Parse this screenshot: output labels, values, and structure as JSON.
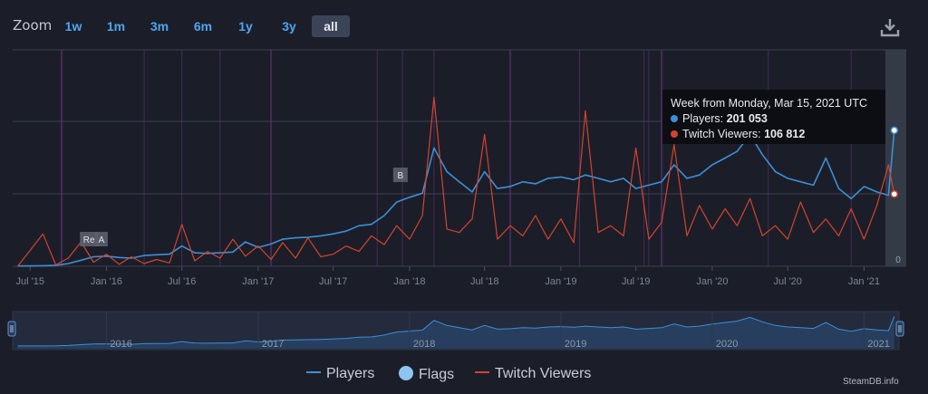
{
  "zoom": {
    "label": "Zoom",
    "buttons": [
      "1w",
      "1m",
      "3m",
      "6m",
      "1y",
      "3y",
      "all"
    ],
    "active": "all"
  },
  "tooltip": {
    "header": "Week from Monday, Mar 15, 2021 UTC",
    "players_label": "Players:",
    "players_value": "201 053",
    "twitch_label": "Twitch Viewers:",
    "twitch_value": "106 812"
  },
  "legend": {
    "players": "Players",
    "flags": "Flags",
    "twitch": "Twitch Viewers"
  },
  "credit": "SteamDB.info",
  "colors": {
    "players": "#3d8fd6",
    "twitch": "#d2442d",
    "flags": "#8ec4f2",
    "background": "#1b1e29",
    "grid": "#3a4050",
    "event_band": "#5a2f6a"
  },
  "chart_data": {
    "type": "line",
    "x_ticks": [
      "Jul '15",
      "Jan '16",
      "Jul '16",
      "Jan '17",
      "Jul '17",
      "Jan '18",
      "Jul '18",
      "Jan '19",
      "Jul '19",
      "Jan '20",
      "Jul '20",
      "Jan '21"
    ],
    "y_ticks_right": [
      "0"
    ],
    "flags": [
      "Re",
      "A",
      "B"
    ],
    "navigator_labels": [
      "2016",
      "2017",
      "2018",
      "2019",
      "2020",
      "2021"
    ],
    "ylim": [
      0,
      300000
    ],
    "series": [
      {
        "name": "Players",
        "points": [
          [
            "2015-06-01",
            400
          ],
          [
            "2015-07-01",
            500
          ],
          [
            "2015-08-01",
            800
          ],
          [
            "2015-09-01",
            1500
          ],
          [
            "2015-10-01",
            4000
          ],
          [
            "2015-11-01",
            9000
          ],
          [
            "2015-12-01",
            14000
          ],
          [
            "2016-01-01",
            15000
          ],
          [
            "2016-02-01",
            13000
          ],
          [
            "2016-03-01",
            12000
          ],
          [
            "2016-04-01",
            16000
          ],
          [
            "2016-05-01",
            17000
          ],
          [
            "2016-06-01",
            18000
          ],
          [
            "2016-07-01",
            30000
          ],
          [
            "2016-08-01",
            20000
          ],
          [
            "2016-09-01",
            19000
          ],
          [
            "2016-10-01",
            20000
          ],
          [
            "2016-11-01",
            21000
          ],
          [
            "2016-12-01",
            36000
          ],
          [
            "2017-01-01",
            28000
          ],
          [
            "2017-02-01",
            33000
          ],
          [
            "2017-03-01",
            40000
          ],
          [
            "2017-04-01",
            42000
          ],
          [
            "2017-05-01",
            43000
          ],
          [
            "2017-06-01",
            45000
          ],
          [
            "2017-07-01",
            48000
          ],
          [
            "2017-08-01",
            52000
          ],
          [
            "2017-09-01",
            60000
          ],
          [
            "2017-10-01",
            62000
          ],
          [
            "2017-11-01",
            75000
          ],
          [
            "2017-12-01",
            95000
          ],
          [
            "2018-01-01",
            102000
          ],
          [
            "2018-02-01",
            108000
          ],
          [
            "2018-03-01",
            175000
          ],
          [
            "2018-04-01",
            140000
          ],
          [
            "2018-05-01",
            125000
          ],
          [
            "2018-06-01",
            110000
          ],
          [
            "2018-07-01",
            140000
          ],
          [
            "2018-08-01",
            115000
          ],
          [
            "2018-09-01",
            118000
          ],
          [
            "2018-10-01",
            125000
          ],
          [
            "2018-11-01",
            122000
          ],
          [
            "2018-12-01",
            130000
          ],
          [
            "2019-01-01",
            132000
          ],
          [
            "2019-02-01",
            128000
          ],
          [
            "2019-03-01",
            135000
          ],
          [
            "2019-04-01",
            130000
          ],
          [
            "2019-05-01",
            125000
          ],
          [
            "2019-06-01",
            130000
          ],
          [
            "2019-07-01",
            115000
          ],
          [
            "2019-08-01",
            120000
          ],
          [
            "2019-09-01",
            125000
          ],
          [
            "2019-10-01",
            150000
          ],
          [
            "2019-11-01",
            130000
          ],
          [
            "2019-12-01",
            135000
          ],
          [
            "2020-01-01",
            150000
          ],
          [
            "2020-02-01",
            160000
          ],
          [
            "2020-03-01",
            170000
          ],
          [
            "2020-04-01",
            195000
          ],
          [
            "2020-05-01",
            165000
          ],
          [
            "2020-06-01",
            140000
          ],
          [
            "2020-07-01",
            130000
          ],
          [
            "2020-08-01",
            125000
          ],
          [
            "2020-09-01",
            120000
          ],
          [
            "2020-10-01",
            160000
          ],
          [
            "2020-11-01",
            115000
          ],
          [
            "2020-12-01",
            100000
          ],
          [
            "2021-01-01",
            118000
          ],
          [
            "2021-02-01",
            110000
          ],
          [
            "2021-03-01",
            105000
          ],
          [
            "2021-03-15",
            201053
          ]
        ]
      },
      {
        "name": "Twitch Viewers",
        "points": [
          [
            "2015-06-01",
            0
          ],
          [
            "2015-08-01",
            48000
          ],
          [
            "2015-09-01",
            2000
          ],
          [
            "2015-10-01",
            12000
          ],
          [
            "2015-11-01",
            36000
          ],
          [
            "2015-12-01",
            6000
          ],
          [
            "2016-01-01",
            18000
          ],
          [
            "2016-02-01",
            3000
          ],
          [
            "2016-03-01",
            14000
          ],
          [
            "2016-04-01",
            4000
          ],
          [
            "2016-05-01",
            10000
          ],
          [
            "2016-06-01",
            5000
          ],
          [
            "2016-07-01",
            62000
          ],
          [
            "2016-08-01",
            8000
          ],
          [
            "2016-09-01",
            22000
          ],
          [
            "2016-10-01",
            12000
          ],
          [
            "2016-11-01",
            40000
          ],
          [
            "2016-12-01",
            15000
          ],
          [
            "2017-01-01",
            30000
          ],
          [
            "2017-02-01",
            10000
          ],
          [
            "2017-03-01",
            35000
          ],
          [
            "2017-04-01",
            12000
          ],
          [
            "2017-05-01",
            42000
          ],
          [
            "2017-06-01",
            14000
          ],
          [
            "2017-07-01",
            18000
          ],
          [
            "2017-08-01",
            30000
          ],
          [
            "2017-09-01",
            22000
          ],
          [
            "2017-10-01",
            45000
          ],
          [
            "2017-11-01",
            32000
          ],
          [
            "2017-12-01",
            60000
          ],
          [
            "2018-01-01",
            40000
          ],
          [
            "2018-02-01",
            75000
          ],
          [
            "2018-03-01",
            250000
          ],
          [
            "2018-04-01",
            55000
          ],
          [
            "2018-05-01",
            50000
          ],
          [
            "2018-06-01",
            70000
          ],
          [
            "2018-07-01",
            195000
          ],
          [
            "2018-08-01",
            40000
          ],
          [
            "2018-09-01",
            60000
          ],
          [
            "2018-10-01",
            45000
          ],
          [
            "2018-11-01",
            75000
          ],
          [
            "2018-12-01",
            40000
          ],
          [
            "2019-01-01",
            70000
          ],
          [
            "2019-02-01",
            35000
          ],
          [
            "2019-03-01",
            230000
          ],
          [
            "2019-04-01",
            50000
          ],
          [
            "2019-05-01",
            60000
          ],
          [
            "2019-06-01",
            45000
          ],
          [
            "2019-07-01",
            175000
          ],
          [
            "2019-08-01",
            40000
          ],
          [
            "2019-09-01",
            65000
          ],
          [
            "2019-10-01",
            180000
          ],
          [
            "2019-11-01",
            45000
          ],
          [
            "2019-12-01",
            90000
          ],
          [
            "2020-01-01",
            55000
          ],
          [
            "2020-02-01",
            85000
          ],
          [
            "2020-03-01",
            60000
          ],
          [
            "2020-04-01",
            100000
          ],
          [
            "2020-05-01",
            45000
          ],
          [
            "2020-06-01",
            60000
          ],
          [
            "2020-07-01",
            40000
          ],
          [
            "2020-08-01",
            95000
          ],
          [
            "2020-09-01",
            50000
          ],
          [
            "2020-10-01",
            70000
          ],
          [
            "2020-11-01",
            45000
          ],
          [
            "2020-12-01",
            85000
          ],
          [
            "2021-01-01",
            40000
          ],
          [
            "2021-02-01",
            90000
          ],
          [
            "2021-03-01",
            150000
          ],
          [
            "2021-03-15",
            106812
          ]
        ]
      }
    ],
    "legend_position": "bottom",
    "grid": true
  }
}
